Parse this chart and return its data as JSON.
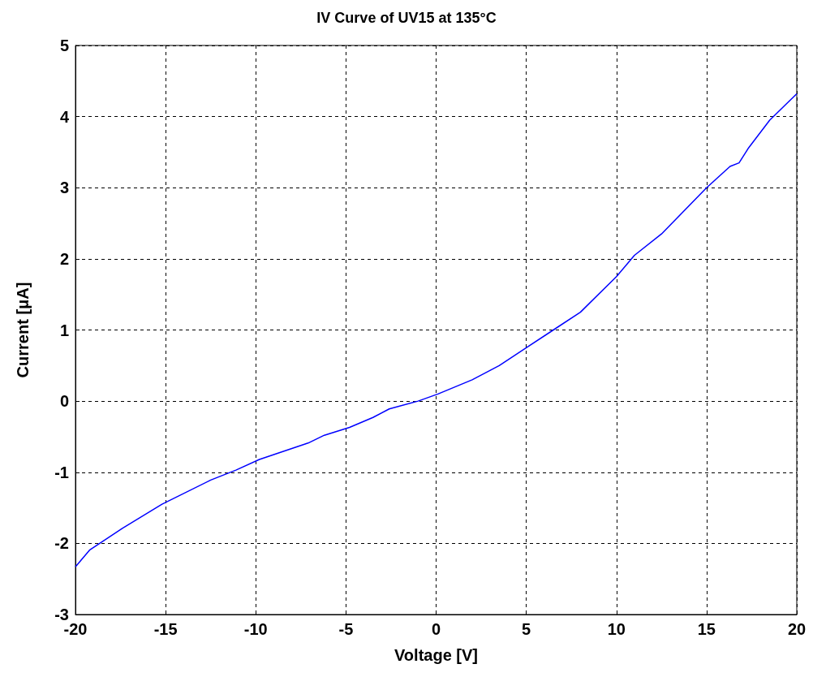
{
  "chart_data": {
    "type": "line",
    "title": "IV Curve of UV15 at 135°C",
    "xlabel": "Voltage [V]",
    "ylabel": "Current [μA]",
    "x": [
      -20,
      -19.2,
      -17.4,
      -15.2,
      -12.5,
      -11.1,
      -9.8,
      -7.1,
      -6.2,
      -4.8,
      -3.5,
      -2.6,
      -1.0,
      0.1,
      2,
      3.5,
      5,
      6.5,
      8,
      10,
      11,
      12.5,
      15,
      16.3,
      16.8,
      17.3,
      18.5,
      20
    ],
    "series": [
      {
        "color": "#0000ff",
        "values": [
          -2.33,
          -2.09,
          -1.79,
          -1.45,
          -1.11,
          -0.97,
          -0.82,
          -0.59,
          -0.48,
          -0.37,
          -0.23,
          -0.11,
          0.0,
          0.1,
          0.3,
          0.5,
          0.75,
          1.0,
          1.25,
          1.75,
          2.05,
          2.35,
          3.0,
          3.3,
          3.35,
          3.55,
          3.95,
          4.32
        ]
      }
    ],
    "xlim": [
      -20,
      20
    ],
    "xticks": [
      -20,
      -15,
      -10,
      -5,
      0,
      5,
      10,
      15,
      20
    ],
    "ylim": [
      -3,
      5
    ],
    "yticks": [
      -3,
      -2,
      -1,
      0,
      1,
      2,
      3,
      4,
      5
    ],
    "grid": true,
    "marker": "none",
    "line_style": "solid"
  }
}
